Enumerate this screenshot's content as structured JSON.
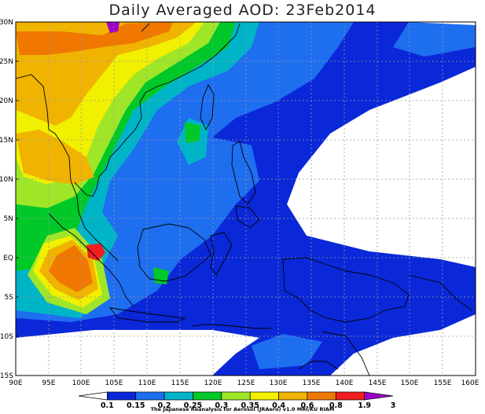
{
  "title": "Daily Averaged AOD: 23Feb2014",
  "credit": "The Japanese Reanalysis for Aerosol (JRAero) v1.0 MRI/KU RIAM",
  "lat_labels": [
    "30N",
    "25N",
    "20N",
    "15N",
    "10N",
    "5N",
    "EQ",
    "5S",
    "10S",
    "15S"
  ],
  "lon_labels": [
    "90E",
    "95E",
    "100E",
    "105E",
    "110E",
    "115E",
    "120E",
    "125E",
    "130E",
    "135E",
    "140E",
    "145E",
    "150E",
    "155E",
    "160E"
  ],
  "colorbar": {
    "ticks": [
      "0.1",
      "0.15",
      "0.2",
      "0.25",
      "0.3",
      "0.35",
      "0.4",
      "0.6",
      "0.8",
      "1.9",
      "3"
    ],
    "colors": [
      "#ffffff",
      "#0a28d8",
      "#1e6ef0",
      "#00b4c8",
      "#00c828",
      "#a0e628",
      "#f0f000",
      "#f0b400",
      "#f07800",
      "#f01e1e",
      "#a000c8"
    ]
  }
}
